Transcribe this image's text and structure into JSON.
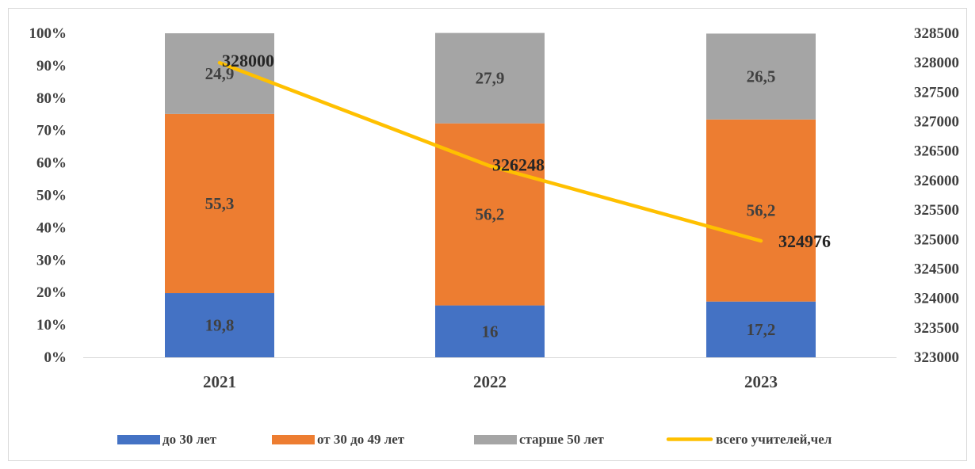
{
  "chart_data": {
    "type": "bar",
    "stacked": true,
    "categories": [
      "2021",
      "2022",
      "2023"
    ],
    "series": [
      {
        "name": "до 30 лет",
        "values": [
          19.8,
          16,
          17.2
        ],
        "labels": [
          "19,8",
          "16",
          "17,2"
        ],
        "color": "#4472C4"
      },
      {
        "name": "от 30 до 49 лет",
        "values": [
          55.3,
          56.2,
          56.2
        ],
        "labels": [
          "55,3",
          "56,2",
          "56,2"
        ],
        "color": "#ED7D31"
      },
      {
        "name": "старше 50 лет",
        "values": [
          24.9,
          27.9,
          26.5
        ],
        "labels": [
          "24,9",
          "27,9",
          "26,5"
        ],
        "color": "#A5A5A5"
      }
    ],
    "line_series": {
      "name": "всего учителей,чел",
      "values": [
        328000,
        326248,
        324976
      ],
      "labels": [
        "328000",
        "326248",
        "324976"
      ],
      "color": "#FFC000",
      "axis": "right"
    },
    "left_axis": {
      "ylim": [
        0,
        100
      ],
      "ticks": [
        "0%",
        "10%",
        "20%",
        "30%",
        "40%",
        "50%",
        "60%",
        "70%",
        "80%",
        "90%",
        "100%"
      ]
    },
    "right_axis": {
      "ylim": [
        323000,
        328500
      ],
      "ticks": [
        "323000",
        "323500",
        "324000",
        "324500",
        "325000",
        "325500",
        "326000",
        "326500",
        "327000",
        "327500",
        "328000",
        "328500"
      ]
    },
    "grid": false,
    "legend_position": "bottom",
    "title": ""
  }
}
